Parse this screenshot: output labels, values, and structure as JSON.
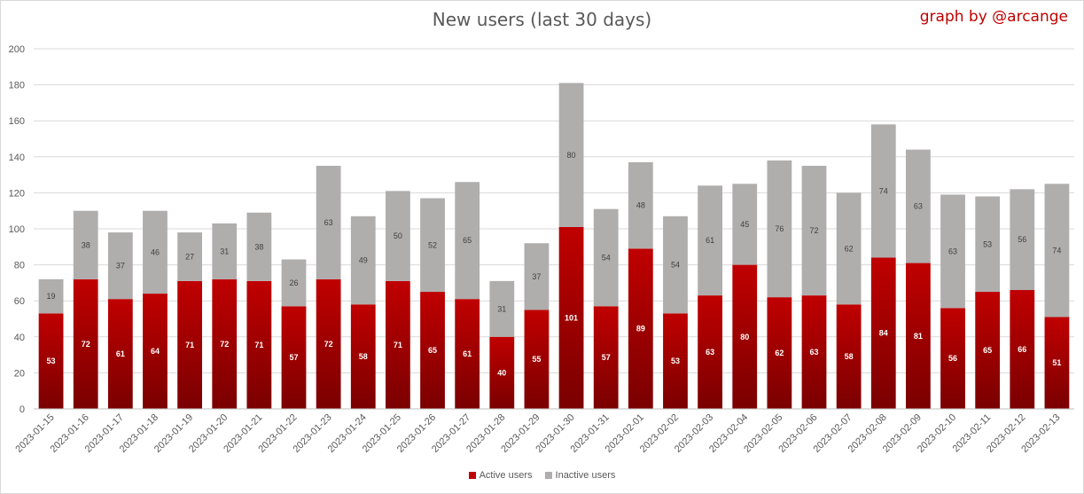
{
  "title": "New users (last 30 days)",
  "credit": "graph by @arcange",
  "colors": {
    "active": "#c00000",
    "active_dark": "#7a0000",
    "inactive": "#b0adad",
    "grid": "#d9d9d9"
  },
  "legend": {
    "active_label": "Active users",
    "inactive_label": "Inactive users"
  },
  "chart_data": {
    "type": "bar",
    "stacked": true,
    "title": "New users (last 30 days)",
    "xlabel": "",
    "ylabel": "",
    "ylim": [
      0,
      200
    ],
    "yticks": [
      0,
      20,
      40,
      60,
      80,
      100,
      120,
      140,
      160,
      180,
      200
    ],
    "grid": true,
    "legend_position": "bottom",
    "categories": [
      "2023-01-15",
      "2023-01-16",
      "2023-01-17",
      "2023-01-18",
      "2023-01-19",
      "2023-01-20",
      "2023-01-21",
      "2023-01-22",
      "2023-01-23",
      "2023-01-24",
      "2023-01-25",
      "2023-01-26",
      "2023-01-27",
      "2023-01-28",
      "2023-01-29",
      "2023-01-30",
      "2023-01-31",
      "2023-02-01",
      "2023-02-02",
      "2023-02-03",
      "2023-02-04",
      "2023-02-05",
      "2023-02-06",
      "2023-02-07",
      "2023-02-08",
      "2023-02-09",
      "2023-02-10",
      "2023-02-11",
      "2023-02-12",
      "2023-02-13"
    ],
    "series": [
      {
        "name": "Active users",
        "values": [
          53,
          72,
          61,
          64,
          71,
          72,
          71,
          57,
          72,
          58,
          71,
          65,
          61,
          40,
          55,
          101,
          57,
          89,
          53,
          63,
          80,
          62,
          63,
          58,
          84,
          81,
          56,
          65,
          66,
          51
        ]
      },
      {
        "name": "Inactive users",
        "values": [
          19,
          38,
          37,
          46,
          27,
          31,
          38,
          26,
          63,
          49,
          50,
          52,
          65,
          31,
          37,
          80,
          54,
          48,
          54,
          61,
          45,
          76,
          72,
          62,
          74,
          63,
          63,
          53,
          56,
          74
        ]
      }
    ]
  }
}
